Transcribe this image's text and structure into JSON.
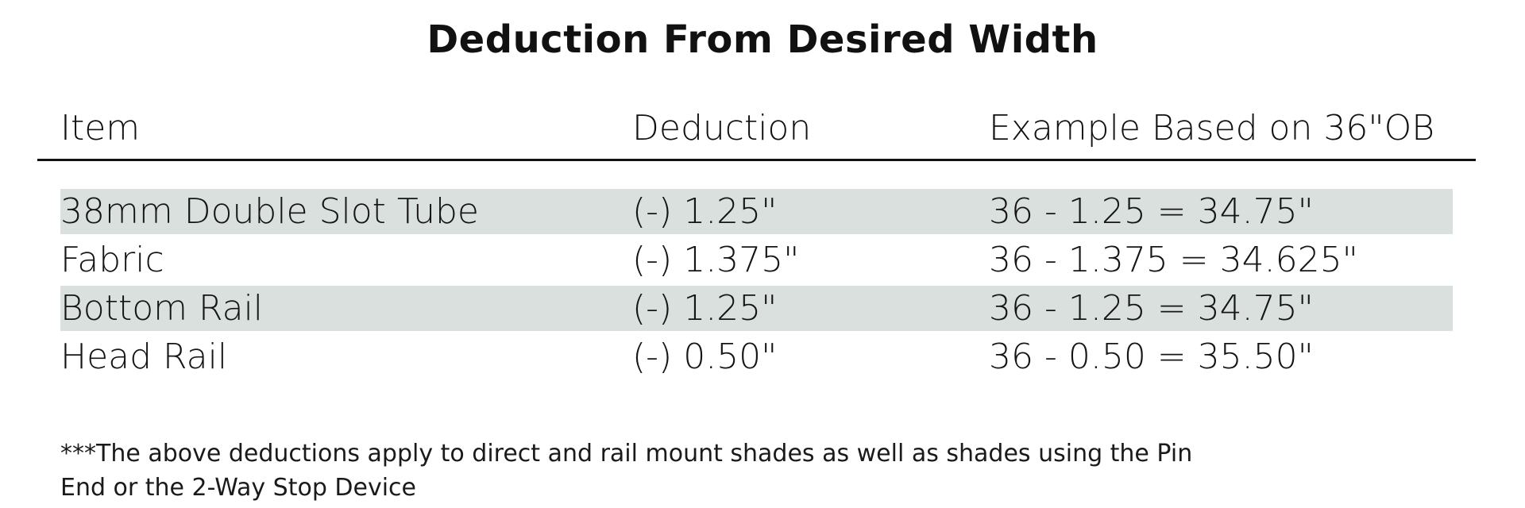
{
  "title": "Deduction From Desired Width",
  "table": {
    "headers": {
      "item": "Item",
      "deduction": "Deduction",
      "example": "Example Based on 36\"OB"
    },
    "rows": [
      {
        "item": "38mm Double Slot Tube",
        "deduction": "(-) 1.25\"",
        "example": "36 - 1.25 = 34.75\""
      },
      {
        "item": "Fabric",
        "deduction": "(-) 1.375\"",
        "example": "36 - 1.375 = 34.625\""
      },
      {
        "item": "Bottom Rail",
        "deduction": "(-) 1.25\"",
        "example": "36 - 1.25 = 34.75\""
      },
      {
        "item": "Head Rail",
        "deduction": "(-) 0.50\"",
        "example": "36 - 0.50 = 35.50\""
      }
    ],
    "row_shade_color": "#dae0dd"
  },
  "note": {
    "line1": "***The above deductions apply to direct and rail mount shades as well as shades using the Pin",
    "line2": "End or the 2-Way Stop Device"
  }
}
